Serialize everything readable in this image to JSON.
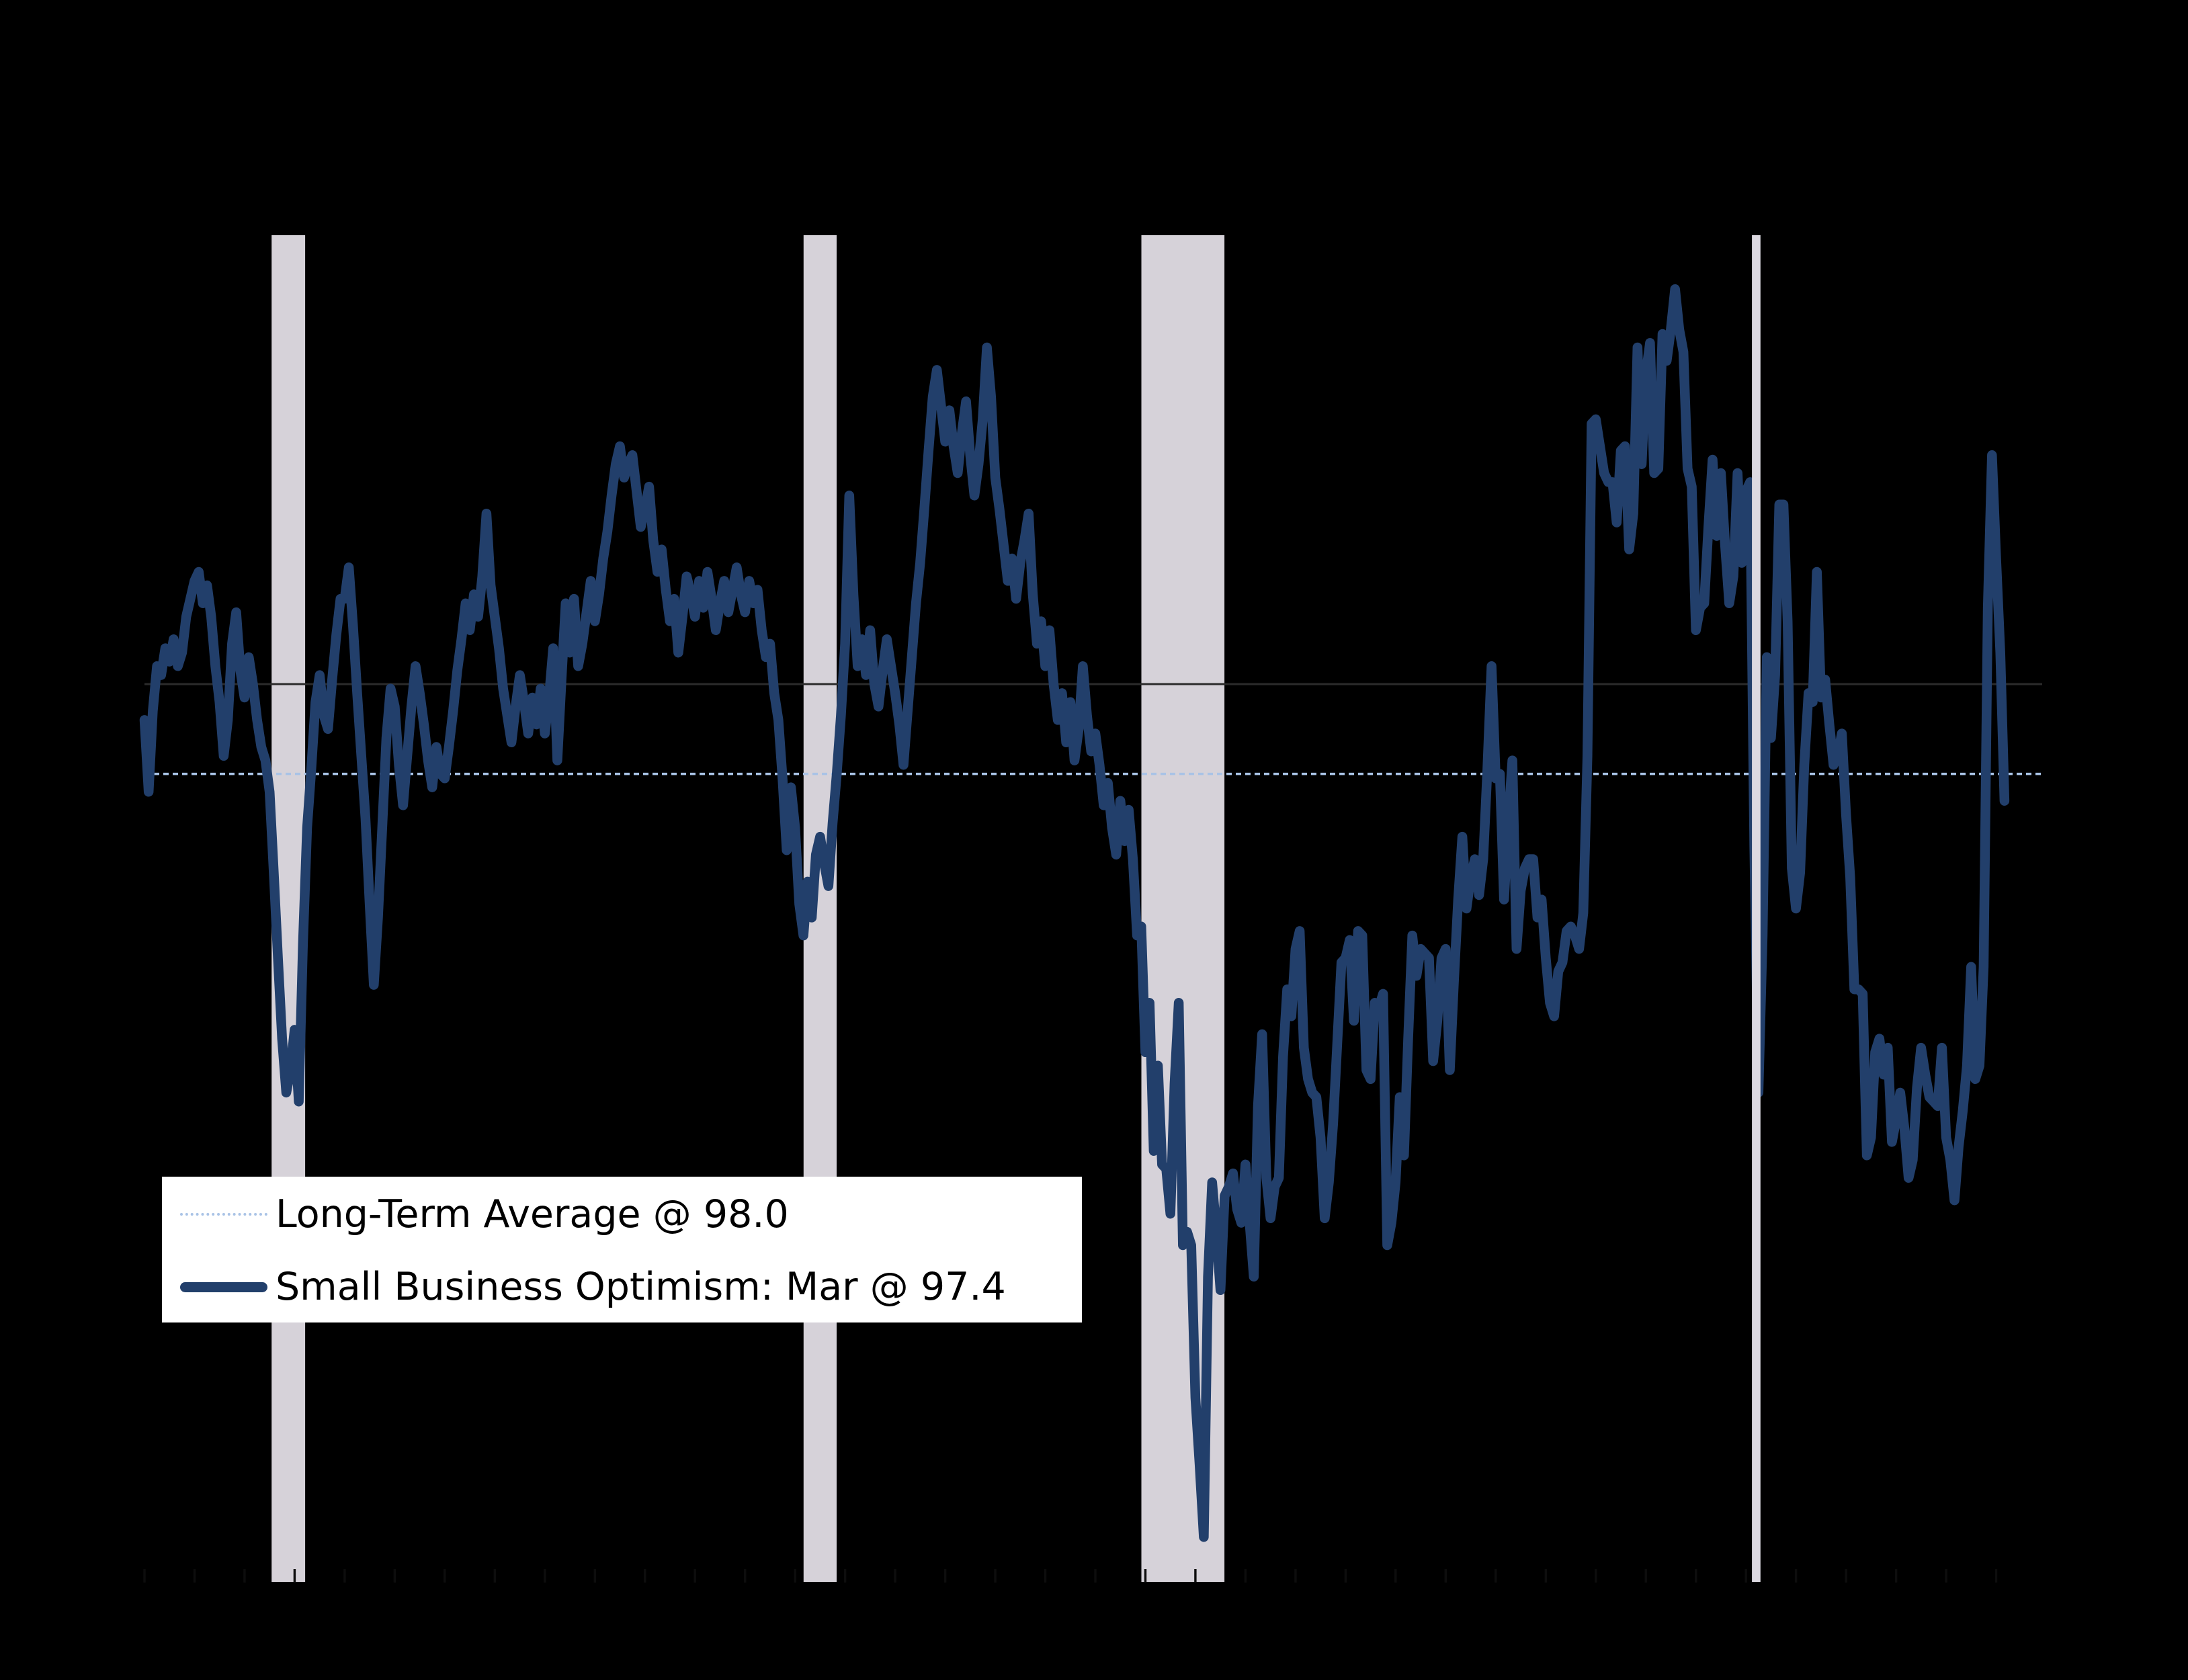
{
  "page": {
    "background_color": "#000000"
  },
  "legend": {
    "position": "lower-left",
    "background_color": "#ffffff",
    "items": [
      {
        "label": "Long-Term Average @ 98.0",
        "style": "dotted",
        "color": "#a9c3e6"
      },
      {
        "label": "Small Business Optimism: Mar @ 97.4",
        "style": "solid",
        "color": "#223f6b"
      }
    ]
  },
  "chart_data": {
    "type": "line",
    "title": "",
    "xlabel": "",
    "ylabel": "",
    "x_axis": {
      "start": "1988-01",
      "end": "2025-03",
      "range_years": [
        1988,
        2026
      ],
      "tick_interval_years": 1,
      "tick_color": "#0d0d0d"
    },
    "y_axis": {
      "range": [
        80,
        110
      ],
      "reference_line_value": 100.0,
      "grid": false
    },
    "long_term_average": 98.0,
    "latest": {
      "month": "Mar",
      "value": 97.4
    },
    "colors": {
      "line": "#223f6b",
      "average_line": "#a9c3e6",
      "reference_line": "#2b2b2b",
      "recession_band": "#d6d2d9",
      "recession_band_2020": "#dcd9e1"
    },
    "recession_bands": [
      {
        "start": 1990.54,
        "end": 1991.21,
        "layer": "below"
      },
      {
        "start": 2001.17,
        "end": 2001.83,
        "layer": "below"
      },
      {
        "start": 2007.92,
        "end": 2009.58,
        "layer": "below"
      },
      {
        "start": 2020.12,
        "end": 2020.29,
        "layer": "above"
      }
    ],
    "series": [
      {
        "name": "Small Business Optimism",
        "legend_label": "Small Business Optimism: Mar @ 97.4",
        "start_year": 1988,
        "monthly_by_year": [
          {
            "y": 1988,
            "v": [
              99.2,
              97.6,
              99.4,
              100.4,
              100.2,
              100.8,
              100.5,
              101.0,
              100.4,
              100.7,
              101.5,
              101.9
            ]
          },
          {
            "y": 1989,
            "v": [
              102.3,
              102.5,
              101.8,
              102.2,
              101.5,
              100.4,
              99.6,
              98.4,
              99.2,
              100.9,
              101.6,
              100.3
            ]
          },
          {
            "y": 1990,
            "v": [
              99.7,
              100.6,
              100.0,
              99.2,
              98.6,
              98.3,
              97.6,
              95.8,
              93.9,
              92.1,
              90.9,
              91.4
            ]
          },
          {
            "y": 1991,
            "v": [
              92.3,
              90.7,
              94.2,
              96.8,
              98.1,
              99.6,
              100.2,
              99.3,
              99.0,
              100.1,
              101.1,
              101.9
            ]
          },
          {
            "y": 1992,
            "v": [
              101.9,
              102.6,
              101.3,
              99.8,
              98.4,
              97.0,
              95.1,
              93.3,
              94.8,
              96.8,
              98.8,
              99.9
            ]
          },
          {
            "y": 1993,
            "v": [
              99.5,
              98.2,
              97.3,
              98.4,
              99.5,
              100.4,
              99.8,
              99.1,
              98.3,
              97.7,
              98.6,
              98.0
            ]
          },
          {
            "y": 1994,
            "v": [
              97.9,
              98.6,
              99.4,
              100.3,
              101.0,
              101.8,
              101.2,
              102.0,
              101.5,
              102.4,
              103.8,
              102.2
            ]
          },
          {
            "y": 1995,
            "v": [
              101.5,
              100.8,
              99.9,
              99.3,
              98.7,
              99.5,
              100.2,
              99.6,
              98.9,
              99.7,
              99.1,
              99.9
            ]
          },
          {
            "y": 1996,
            "v": [
              98.9,
              99.7,
              100.8,
              98.3,
              100.1,
              101.8,
              100.7,
              101.9,
              100.4,
              100.9,
              101.6,
              102.3
            ]
          },
          {
            "y": 1997,
            "v": [
              101.4,
              102.0,
              102.8,
              103.4,
              104.2,
              104.9,
              105.3,
              104.6,
              104.9,
              105.1,
              104.3,
              103.5
            ]
          },
          {
            "y": 1998,
            "v": [
              103.9,
              104.4,
              103.2,
              102.5,
              103.0,
              102.1,
              101.4,
              101.9,
              100.7,
              101.5,
              102.4,
              102.0
            ]
          },
          {
            "y": 1999,
            "v": [
              101.5,
              102.3,
              101.7,
              102.5,
              101.9,
              101.2,
              101.8,
              102.3,
              101.6,
              102.1,
              102.6,
              102.0
            ]
          },
          {
            "y": 2000,
            "v": [
              101.6,
              102.3,
              101.8,
              102.1,
              101.2,
              100.6,
              100.9,
              99.8,
              99.2,
              97.9,
              96.3,
              97.7
            ]
          },
          {
            "y": 2001,
            "v": [
              96.8,
              95.1,
              94.4,
              95.6,
              94.8,
              96.2,
              96.6,
              96.0,
              95.5,
              96.9,
              98.0,
              99.3
            ]
          },
          {
            "y": 2002,
            "v": [
              100.9,
              104.2,
              102.0,
              100.4,
              101.0,
              100.2,
              101.2,
              100.0,
              99.5,
              100.3,
              101.0,
              100.4
            ]
          },
          {
            "y": 2003,
            "v": [
              99.8,
              99.1,
              98.2,
              99.4,
              100.6,
              101.8,
              102.7,
              103.9,
              105.2,
              106.4,
              107.0,
              106.2
            ]
          },
          {
            "y": 2004,
            "v": [
              105.4,
              106.1,
              105.3,
              104.7,
              105.6,
              106.3,
              105.1,
              104.2,
              104.9,
              105.9,
              107.5,
              106.4
            ]
          },
          {
            "y": 2005,
            "v": [
              104.6,
              103.9,
              103.1,
              102.3,
              102.8,
              101.9,
              102.7,
              103.2,
              103.8,
              102.0,
              100.9,
              101.4
            ]
          },
          {
            "y": 2006,
            "v": [
              100.4,
              101.2,
              100.0,
              99.2,
              99.8,
              98.7,
              99.6,
              98.3,
              99.0,
              100.4,
              99.3,
              98.5
            ]
          },
          {
            "y": 2007,
            "v": [
              98.9,
              98.2,
              97.3,
              97.8,
              96.8,
              96.2,
              97.4,
              96.5,
              97.2,
              96.1,
              94.4,
              94.6
            ]
          },
          {
            "y": 2008,
            "v": [
              91.8,
              92.9,
              89.6,
              91.5,
              89.3,
              89.2,
              88.2,
              91.1,
              92.9,
              87.5,
              87.8,
              87.5
            ]
          },
          {
            "y": 2009,
            "v": [
              84.1,
              82.6,
              81.0,
              86.8,
              88.9,
              87.8,
              86.5,
              88.6,
              88.8,
              89.1,
              88.3,
              88.0
            ]
          },
          {
            "y": 2010,
            "v": [
              89.3,
              88.0,
              86.8,
              90.6,
              92.2,
              89.0,
              88.1,
              88.8,
              89.0,
              91.7,
              93.2,
              92.6
            ]
          },
          {
            "y": 2011,
            "v": [
              94.1,
              94.5,
              91.9,
              91.2,
              90.9,
              90.8,
              89.9,
              88.1,
              88.9,
              90.2,
              92.0,
              93.8
            ]
          },
          {
            "y": 2012,
            "v": [
              93.9,
              94.3,
              92.5,
              94.5,
              94.4,
              91.4,
              91.2,
              92.9,
              92.8,
              93.1,
              87.5,
              88.0
            ]
          },
          {
            "y": 2013,
            "v": [
              88.9,
              90.8,
              89.5,
              92.1,
              94.4,
              93.5,
              94.1,
              94.0,
              93.9,
              91.6,
              92.5,
              93.9
            ]
          },
          {
            "y": 2014,
            "v": [
              94.1,
              91.4,
              93.4,
              95.2,
              96.6,
              95.0,
              95.7,
              96.1,
              95.3,
              96.1,
              98.1,
              100.4
            ]
          },
          {
            "y": 2015,
            "v": [
              97.9,
              98.0,
              95.2,
              96.9,
              98.3,
              94.1,
              95.4,
              95.9,
              96.1,
              96.1,
              94.8,
              95.2
            ]
          },
          {
            "y": 2016,
            "v": [
              93.9,
              92.9,
              92.6,
              93.6,
              93.8,
              94.5,
              94.6,
              94.4,
              94.1,
              94.9,
              98.4,
              105.8
            ]
          },
          {
            "y": 2017,
            "v": [
              105.9,
              105.3,
              104.7,
              104.5,
              104.5,
              103.6,
              105.2,
              105.3,
              103.0,
              103.8,
              107.5,
              104.9
            ]
          },
          {
            "y": 2018,
            "v": [
              106.9,
              107.6,
              104.7,
              104.8,
              107.8,
              107.2,
              107.9,
              108.8,
              107.9,
              107.4,
              104.8,
              104.4
            ]
          },
          {
            "y": 2019,
            "v": [
              101.2,
              101.7,
              101.8,
              103.5,
              105.0,
              103.3,
              104.7,
              103.1,
              101.8,
              102.4,
              104.7,
              102.7
            ]
          },
          {
            "y": 2020,
            "v": [
              104.3,
              104.5,
              96.4,
              90.9,
              94.4,
              100.6,
              98.8,
              100.2,
              104.0,
              104.0,
              101.4,
              95.9
            ]
          },
          {
            "y": 2021,
            "v": [
              95.0,
              95.8,
              98.2,
              99.8,
              99.6,
              102.5,
              99.7,
              100.1,
              99.1,
              98.2,
              98.4,
              98.9
            ]
          },
          {
            "y": 2022,
            "v": [
              97.1,
              95.7,
              93.2,
              93.2,
              93.1,
              89.5,
              89.9,
              91.8,
              92.1,
              91.3,
              91.9,
              89.8
            ]
          },
          {
            "y": 2023,
            "v": [
              90.3,
              90.9,
              90.1,
              89.0,
              89.4,
              91.0,
              91.9,
              91.3,
              90.8,
              90.7,
              90.6,
              91.9
            ]
          },
          {
            "y": 2024,
            "v": [
              89.9,
              89.4,
              88.5,
              89.7,
              90.5,
              91.5,
              93.7,
              91.2,
              91.5,
              93.7,
              101.7,
              105.1
            ]
          },
          {
            "y": 2025,
            "v": [
              102.8,
              100.7,
              97.4
            ]
          }
        ]
      }
    ]
  }
}
